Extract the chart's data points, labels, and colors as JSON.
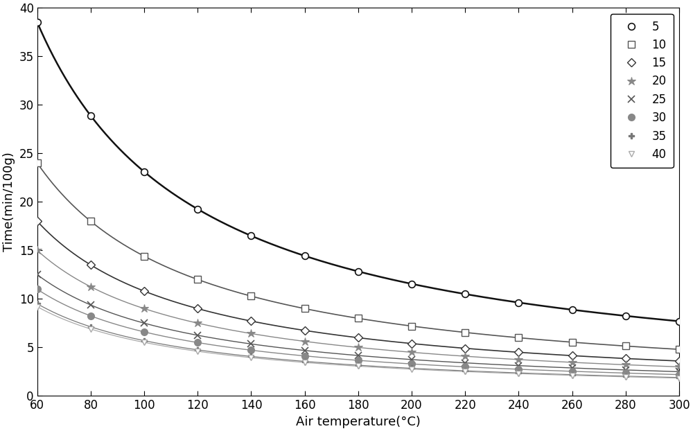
{
  "title": "",
  "xlabel": "Air temperature(°C)",
  "ylabel": "Time(min/100g)",
  "xlim": [
    60,
    300
  ],
  "ylim": [
    0,
    40
  ],
  "xticks": [
    60,
    80,
    100,
    120,
    140,
    160,
    180,
    200,
    220,
    240,
    260,
    280,
    300
  ],
  "yticks": [
    0,
    5,
    10,
    15,
    20,
    25,
    30,
    35,
    40
  ],
  "series": [
    {
      "label": "5",
      "color": "#111111",
      "linestyle": "-",
      "marker": "o",
      "markersize": 7,
      "linewidth": 1.8,
      "markerfacecolor": "white",
      "markeredgecolor": "#111111",
      "markeredgewidth": 1.2,
      "k": 2310
    },
    {
      "label": "10",
      "color": "#555555",
      "linestyle": "-",
      "marker": "s",
      "markersize": 7,
      "linewidth": 1.2,
      "markerfacecolor": "white",
      "markeredgecolor": "#555555",
      "markeredgewidth": 1.0,
      "k": 1440
    },
    {
      "label": "15",
      "color": "#333333",
      "linestyle": "-",
      "marker": "D",
      "markersize": 6,
      "linewidth": 1.2,
      "markerfacecolor": "white",
      "markeredgecolor": "#333333",
      "markeredgewidth": 1.0,
      "k": 1080
    },
    {
      "label": "20",
      "color": "#888888",
      "linestyle": "-",
      "marker": "*",
      "markersize": 9,
      "linewidth": 1.0,
      "markerfacecolor": "#888888",
      "markeredgecolor": "#888888",
      "markeredgewidth": 0.8,
      "k": 900
    },
    {
      "label": "25",
      "color": "#555555",
      "linestyle": "-",
      "marker": "x",
      "markersize": 7,
      "linewidth": 1.0,
      "markerfacecolor": "#555555",
      "markeredgecolor": "#555555",
      "markeredgewidth": 1.2,
      "k": 750
    },
    {
      "label": "30",
      "color": "#888888",
      "linestyle": "-",
      "marker": "o",
      "markersize": 7,
      "linewidth": 1.0,
      "markerfacecolor": "#888888",
      "markeredgecolor": "#888888",
      "markeredgewidth": 1.0,
      "k": 660
    },
    {
      "label": "35",
      "color": "#777777",
      "linestyle": "-",
      "marker": "P",
      "markersize": 6,
      "linewidth": 0.9,
      "markerfacecolor": "#777777",
      "markeredgecolor": "#777777",
      "markeredgewidth": 1.0,
      "k": 570
    },
    {
      "label": "40",
      "color": "#aaaaaa",
      "linestyle": "-",
      "marker": "v",
      "markersize": 6,
      "linewidth": 0.9,
      "markerfacecolor": "white",
      "markeredgecolor": "#aaaaaa",
      "markeredgewidth": 1.0,
      "k": 552
    }
  ],
  "T0": 0,
  "background_color": "#ffffff",
  "legend_loc": "upper right",
  "figsize": [
    10.0,
    6.22
  ],
  "dpi": 100
}
